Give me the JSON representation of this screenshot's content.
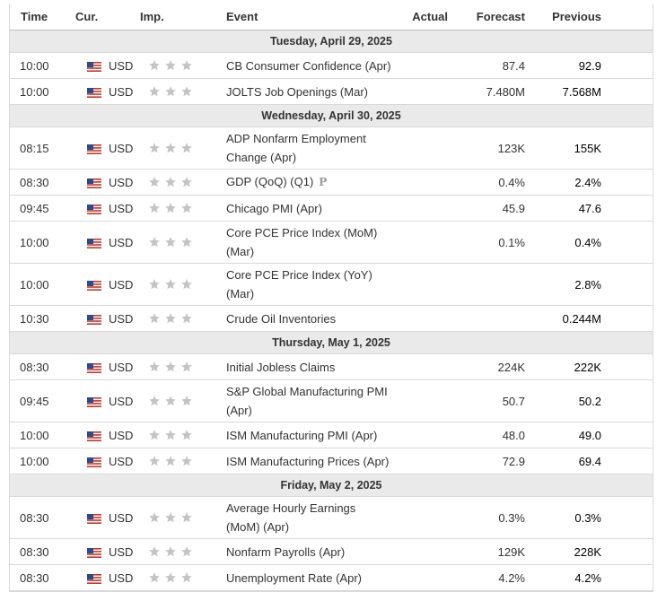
{
  "headers": {
    "time": "Time",
    "currency": "Cur.",
    "importance": "Imp.",
    "event": "Event",
    "actual": "Actual",
    "forecast": "Forecast",
    "previous": "Previous"
  },
  "days": [
    {
      "date": "Tuesday, April 29, 2025",
      "events": [
        {
          "time": "10:00",
          "cur": "USD",
          "event": "CB Consumer Confidence (Apr)",
          "actual": "",
          "forecast": "87.4",
          "previous": "92.9",
          "tall": false,
          "prelim": ""
        },
        {
          "time": "10:00",
          "cur": "USD",
          "event": "JOLTS Job Openings (Mar)",
          "actual": "",
          "forecast": "7.480M",
          "previous": "7.568M",
          "tall": false,
          "prelim": ""
        }
      ]
    },
    {
      "date": "Wednesday, April 30, 2025",
      "events": [
        {
          "time": "08:15",
          "cur": "USD",
          "event": "ADP Nonfarm Employment Change (Apr)",
          "actual": "",
          "forecast": "123K",
          "previous": "155K",
          "tall": true,
          "prelim": ""
        },
        {
          "time": "08:30",
          "cur": "USD",
          "event": "GDP (QoQ) (Q1)",
          "actual": "",
          "forecast": "0.4%",
          "previous": "2.4%",
          "tall": false,
          "prelim": "P"
        },
        {
          "time": "09:45",
          "cur": "USD",
          "event": "Chicago PMI (Apr)",
          "actual": "",
          "forecast": "45.9",
          "previous": "47.6",
          "tall": false,
          "prelim": ""
        },
        {
          "time": "10:00",
          "cur": "USD",
          "event": "Core PCE Price Index (MoM) (Mar)",
          "actual": "",
          "forecast": "0.1%",
          "previous": "0.4%",
          "tall": true,
          "prelim": ""
        },
        {
          "time": "10:00",
          "cur": "USD",
          "event": "Core PCE Price Index (YoY) (Mar)",
          "actual": "",
          "forecast": "",
          "previous": "2.8%",
          "tall": true,
          "prelim": ""
        },
        {
          "time": "10:30",
          "cur": "USD",
          "event": "Crude Oil Inventories",
          "actual": "",
          "forecast": "",
          "previous": "0.244M",
          "tall": false,
          "prelim": ""
        }
      ]
    },
    {
      "date": "Thursday, May 1, 2025",
      "events": [
        {
          "time": "08:30",
          "cur": "USD",
          "event": "Initial Jobless Claims",
          "actual": "",
          "forecast": "224K",
          "previous": "222K",
          "tall": false,
          "prelim": ""
        },
        {
          "time": "09:45",
          "cur": "USD",
          "event": "S&P Global Manufacturing PMI (Apr)",
          "actual": "",
          "forecast": "50.7",
          "previous": "50.2",
          "tall": true,
          "prelim": ""
        },
        {
          "time": "10:00",
          "cur": "USD",
          "event": "ISM Manufacturing PMI (Apr)",
          "actual": "",
          "forecast": "48.0",
          "previous": "49.0",
          "tall": false,
          "prelim": ""
        },
        {
          "time": "10:00",
          "cur": "USD",
          "event": "ISM Manufacturing Prices (Apr)",
          "actual": "",
          "forecast": "72.9",
          "previous": "69.4",
          "tall": false,
          "prelim": ""
        }
      ]
    },
    {
      "date": "Friday, May 2, 2025",
      "events": [
        {
          "time": "08:30",
          "cur": "USD",
          "event": "Average Hourly Earnings (MoM) (Apr)",
          "actual": "",
          "forecast": "0.3%",
          "previous": "0.3%",
          "tall": true,
          "prelim": ""
        },
        {
          "time": "08:30",
          "cur": "USD",
          "event": "Nonfarm Payrolls (Apr)",
          "actual": "",
          "forecast": "129K",
          "previous": "228K",
          "tall": false,
          "prelim": ""
        },
        {
          "time": "08:30",
          "cur": "USD",
          "event": "Unemployment Rate (Apr)",
          "actual": "",
          "forecast": "4.2%",
          "previous": "4.2%",
          "tall": false,
          "prelim": ""
        }
      ]
    }
  ],
  "icons": {
    "flag": "us-flag-icon",
    "importance": "star-icon",
    "preliminary": "preliminary-p-icon"
  },
  "importance_level": 3,
  "colors": {
    "day_header_bg": "#eaeaea",
    "border": "#d9d9d9",
    "star": "#c4c4c4"
  }
}
